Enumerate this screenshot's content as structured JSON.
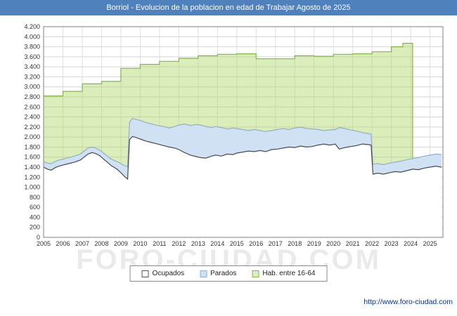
{
  "title": "Borriol - Evolucion de la poblacion en edad de Trabajar Agosto de 2025",
  "watermark_text": "FORO-CIUDAD.COM",
  "footer": {
    "url": "http://www.foro-ciudad.com"
  },
  "legend": {
    "items": [
      {
        "label": "Ocupados",
        "swatch_style": "background:#ffffff;border:1px solid #555555"
      },
      {
        "label": "Parados",
        "swatch_style": "background:#cfe1f3;border:1px solid #8fafd4"
      },
      {
        "label": "Hab. entre 16-64",
        "swatch_style": "background:#ddefc0;border:1px solid #84b840"
      }
    ]
  },
  "chart_data": {
    "type": "area",
    "title": "Borriol - Evolucion de la poblacion en edad de Trabajar Agosto de 2025",
    "xlabel": "",
    "ylabel": "",
    "x_range": [
      2005,
      2025.67
    ],
    "ylim": [
      0,
      4200
    ],
    "grid": true,
    "legend_position": "bottom",
    "colors": {
      "titlebar": "#4f81bd",
      "grid": "#d4d4d4",
      "grid_vertical": "#e0e0e0",
      "axis_border": "#808080",
      "tick_text": "#333333"
    },
    "yticks": {
      "values": [
        0,
        200,
        400,
        600,
        800,
        1000,
        1200,
        1400,
        1600,
        1800,
        2000,
        2200,
        2400,
        2600,
        2800,
        3000,
        3200,
        3400,
        3600,
        3800,
        4000,
        4200
      ],
      "labels": [
        "0",
        "200",
        "400",
        "600",
        "800",
        "1.000",
        "1.200",
        "1.400",
        "1.600",
        "1.800",
        "2.000",
        "2.200",
        "2.400",
        "2.600",
        "2.800",
        "3.000",
        "3.200",
        "3.400",
        "3.600",
        "3.800",
        "4.000",
        "4.200"
      ]
    },
    "years": [
      "2005",
      "2006",
      "2007",
      "2008",
      "2009",
      "2010",
      "2011",
      "2012",
      "2013",
      "2014",
      "2015",
      "2016",
      "2017",
      "2018",
      "2019",
      "2020",
      "2021",
      "2022",
      "2023",
      "2024",
      "2025"
    ],
    "series": [
      {
        "id": "ocupados",
        "name": "Ocupados",
        "fill": "#ffffff",
        "stroke": "#4a4a4a",
        "close_right": false,
        "points": [
          [
            2005.0,
            1400
          ],
          [
            2005.2,
            1360
          ],
          [
            2005.4,
            1340
          ],
          [
            2005.6,
            1390
          ],
          [
            2005.8,
            1420
          ],
          [
            2006.0,
            1440
          ],
          [
            2006.3,
            1470
          ],
          [
            2006.6,
            1500
          ],
          [
            2006.9,
            1540
          ],
          [
            2007.1,
            1600
          ],
          [
            2007.3,
            1660
          ],
          [
            2007.5,
            1690
          ],
          [
            2007.7,
            1670
          ],
          [
            2007.9,
            1630
          ],
          [
            2008.1,
            1560
          ],
          [
            2008.3,
            1500
          ],
          [
            2008.5,
            1430
          ],
          [
            2008.8,
            1360
          ],
          [
            2009.0,
            1290
          ],
          [
            2009.2,
            1210
          ],
          [
            2009.35,
            1160
          ],
          [
            2009.45,
            1950
          ],
          [
            2009.6,
            2010
          ],
          [
            2009.8,
            1990
          ],
          [
            2010.0,
            1960
          ],
          [
            2010.3,
            1920
          ],
          [
            2010.6,
            1890
          ],
          [
            2010.9,
            1860
          ],
          [
            2011.2,
            1830
          ],
          [
            2011.5,
            1800
          ],
          [
            2011.8,
            1780
          ],
          [
            2012.0,
            1750
          ],
          [
            2012.3,
            1690
          ],
          [
            2012.6,
            1640
          ],
          [
            2012.9,
            1610
          ],
          [
            2013.1,
            1590
          ],
          [
            2013.4,
            1580
          ],
          [
            2013.7,
            1620
          ],
          [
            2013.9,
            1640
          ],
          [
            2014.2,
            1620
          ],
          [
            2014.5,
            1660
          ],
          [
            2014.8,
            1650
          ],
          [
            2015.0,
            1680
          ],
          [
            2015.3,
            1700
          ],
          [
            2015.6,
            1720
          ],
          [
            2015.9,
            1710
          ],
          [
            2016.2,
            1730
          ],
          [
            2016.5,
            1710
          ],
          [
            2016.8,
            1750
          ],
          [
            2017.1,
            1760
          ],
          [
            2017.4,
            1780
          ],
          [
            2017.7,
            1800
          ],
          [
            2018.0,
            1790
          ],
          [
            2018.3,
            1820
          ],
          [
            2018.6,
            1800
          ],
          [
            2018.9,
            1810
          ],
          [
            2019.2,
            1840
          ],
          [
            2019.5,
            1860
          ],
          [
            2019.8,
            1840
          ],
          [
            2020.1,
            1860
          ],
          [
            2020.3,
            1760
          ],
          [
            2020.6,
            1790
          ],
          [
            2020.9,
            1810
          ],
          [
            2021.2,
            1830
          ],
          [
            2021.5,
            1860
          ],
          [
            2021.8,
            1850
          ],
          [
            2021.95,
            1840
          ],
          [
            2022.05,
            1260
          ],
          [
            2022.3,
            1280
          ],
          [
            2022.6,
            1260
          ],
          [
            2022.9,
            1290
          ],
          [
            2023.2,
            1310
          ],
          [
            2023.5,
            1300
          ],
          [
            2023.8,
            1330
          ],
          [
            2024.1,
            1360
          ],
          [
            2024.4,
            1350
          ],
          [
            2024.7,
            1380
          ],
          [
            2025.0,
            1400
          ],
          [
            2025.3,
            1420
          ],
          [
            2025.6,
            1400
          ]
        ]
      },
      {
        "id": "parados",
        "name": "Parados",
        "fill": "#cfe1f3",
        "stroke": "#8fafd4",
        "close_right": false,
        "points": [
          [
            2005.0,
            1510
          ],
          [
            2005.2,
            1480
          ],
          [
            2005.4,
            1470
          ],
          [
            2005.6,
            1510
          ],
          [
            2005.8,
            1540
          ],
          [
            2006.0,
            1560
          ],
          [
            2006.3,
            1590
          ],
          [
            2006.6,
            1620
          ],
          [
            2006.9,
            1660
          ],
          [
            2007.1,
            1720
          ],
          [
            2007.3,
            1780
          ],
          [
            2007.5,
            1800
          ],
          [
            2007.7,
            1780
          ],
          [
            2007.9,
            1740
          ],
          [
            2008.1,
            1680
          ],
          [
            2008.3,
            1620
          ],
          [
            2008.5,
            1560
          ],
          [
            2008.8,
            1510
          ],
          [
            2009.0,
            1470
          ],
          [
            2009.2,
            1430
          ],
          [
            2009.35,
            1410
          ],
          [
            2009.45,
            2300
          ],
          [
            2009.6,
            2370
          ],
          [
            2009.8,
            2350
          ],
          [
            2010.0,
            2330
          ],
          [
            2010.3,
            2290
          ],
          [
            2010.6,
            2260
          ],
          [
            2010.9,
            2230
          ],
          [
            2011.2,
            2210
          ],
          [
            2011.5,
            2180
          ],
          [
            2011.8,
            2210
          ],
          [
            2012.0,
            2240
          ],
          [
            2012.3,
            2260
          ],
          [
            2012.6,
            2230
          ],
          [
            2012.9,
            2250
          ],
          [
            2013.1,
            2240
          ],
          [
            2013.4,
            2210
          ],
          [
            2013.7,
            2190
          ],
          [
            2013.9,
            2210
          ],
          [
            2014.2,
            2190
          ],
          [
            2014.5,
            2160
          ],
          [
            2014.8,
            2180
          ],
          [
            2015.0,
            2170
          ],
          [
            2015.3,
            2150
          ],
          [
            2015.6,
            2130
          ],
          [
            2015.9,
            2150
          ],
          [
            2016.2,
            2130
          ],
          [
            2016.5,
            2110
          ],
          [
            2016.8,
            2130
          ],
          [
            2017.1,
            2150
          ],
          [
            2017.4,
            2170
          ],
          [
            2017.7,
            2150
          ],
          [
            2018.0,
            2180
          ],
          [
            2018.3,
            2200
          ],
          [
            2018.6,
            2170
          ],
          [
            2018.9,
            2160
          ],
          [
            2019.2,
            2150
          ],
          [
            2019.5,
            2130
          ],
          [
            2019.8,
            2140
          ],
          [
            2020.1,
            2150
          ],
          [
            2020.3,
            2190
          ],
          [
            2020.6,
            2170
          ],
          [
            2020.9,
            2140
          ],
          [
            2021.2,
            2120
          ],
          [
            2021.5,
            2090
          ],
          [
            2021.8,
            2070
          ],
          [
            2021.95,
            2060
          ],
          [
            2022.05,
            1460
          ],
          [
            2022.3,
            1470
          ],
          [
            2022.6,
            1450
          ],
          [
            2022.9,
            1480
          ],
          [
            2023.2,
            1500
          ],
          [
            2023.5,
            1520
          ],
          [
            2023.8,
            1550
          ],
          [
            2024.1,
            1570
          ],
          [
            2024.4,
            1590
          ],
          [
            2024.7,
            1620
          ],
          [
            2025.0,
            1640
          ],
          [
            2025.3,
            1660
          ],
          [
            2025.6,
            1650
          ]
        ]
      },
      {
        "id": "hab-16-64",
        "name": "Hab. entre 16-64",
        "fill": "rgba(176,215,105,0.45)",
        "stroke": "#84b840",
        "close_right": true,
        "points": [
          [
            2005.0,
            2820
          ],
          [
            2006.0,
            2820
          ],
          [
            2006.0,
            2910
          ],
          [
            2007.0,
            2910
          ],
          [
            2007.0,
            3060
          ],
          [
            2008.0,
            3060
          ],
          [
            2008.0,
            3110
          ],
          [
            2009.0,
            3110
          ],
          [
            2009.0,
            3370
          ],
          [
            2010.0,
            3370
          ],
          [
            2010.0,
            3450
          ],
          [
            2011.0,
            3450
          ],
          [
            2011.0,
            3510
          ],
          [
            2012.0,
            3510
          ],
          [
            2012.0,
            3570
          ],
          [
            2013.0,
            3570
          ],
          [
            2013.0,
            3620
          ],
          [
            2014.0,
            3620
          ],
          [
            2014.0,
            3650
          ],
          [
            2015.0,
            3650
          ],
          [
            2015.0,
            3660
          ],
          [
            2016.0,
            3660
          ],
          [
            2016.0,
            3560
          ],
          [
            2018.0,
            3560
          ],
          [
            2018.0,
            3620
          ],
          [
            2019.0,
            3620
          ],
          [
            2019.0,
            3610
          ],
          [
            2020.0,
            3610
          ],
          [
            2020.0,
            3650
          ],
          [
            2021.0,
            3650
          ],
          [
            2021.0,
            3660
          ],
          [
            2022.0,
            3660
          ],
          [
            2022.0,
            3700
          ],
          [
            2023.0,
            3700
          ],
          [
            2023.0,
            3800
          ],
          [
            2023.6,
            3800
          ],
          [
            2023.6,
            3870
          ],
          [
            2024.1,
            3870
          ]
        ]
      }
    ]
  }
}
